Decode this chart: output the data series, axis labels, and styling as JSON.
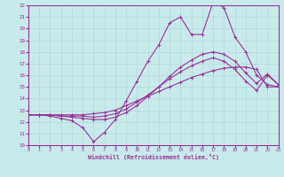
{
  "xlabel": "Windchill (Refroidissement éolien,°C)",
  "bg_color": "#c8eaea",
  "grid_color": "#b0d4d4",
  "line_color": "#993399",
  "xlim": [
    0,
    23
  ],
  "ylim": [
    10,
    22
  ],
  "xticks": [
    0,
    1,
    2,
    3,
    4,
    5,
    6,
    7,
    8,
    9,
    10,
    11,
    12,
    13,
    14,
    15,
    16,
    17,
    18,
    19,
    20,
    21,
    22,
    23
  ],
  "yticks": [
    10,
    11,
    12,
    13,
    14,
    15,
    16,
    17,
    18,
    19,
    20,
    21,
    22
  ],
  "x_all": [
    0,
    1,
    2,
    3,
    4,
    5,
    6,
    7,
    8,
    9,
    10,
    11,
    12,
    13,
    14,
    15,
    16,
    17,
    18,
    19,
    20,
    21,
    22,
    23
  ],
  "line1_y": [
    12.6,
    12.6,
    12.5,
    12.3,
    12.1,
    11.5,
    10.3,
    11.1,
    12.2,
    13.8,
    15.5,
    17.2,
    18.6,
    20.5,
    21.0,
    19.5,
    19.5,
    22.3,
    21.8,
    19.3,
    18.0,
    16.0,
    15.2,
    15.0
  ],
  "line2_y": [
    12.6,
    12.6,
    12.6,
    12.5,
    12.4,
    12.3,
    12.2,
    12.2,
    12.4,
    12.8,
    13.4,
    14.2,
    15.0,
    15.9,
    16.7,
    17.3,
    17.8,
    18.0,
    17.8,
    17.2,
    16.2,
    15.3,
    16.1,
    15.2
  ],
  "line3_y": [
    12.6,
    12.6,
    12.6,
    12.5,
    12.5,
    12.5,
    12.4,
    12.5,
    12.7,
    13.1,
    13.7,
    14.3,
    15.0,
    15.7,
    16.3,
    16.8,
    17.2,
    17.5,
    17.2,
    16.5,
    15.5,
    14.7,
    16.0,
    15.2
  ],
  "line4_y": [
    12.6,
    12.6,
    12.6,
    12.6,
    12.6,
    12.6,
    12.7,
    12.8,
    13.0,
    13.4,
    13.8,
    14.2,
    14.6,
    15.0,
    15.4,
    15.8,
    16.1,
    16.4,
    16.6,
    16.7,
    16.7,
    16.5,
    15.0,
    15.0
  ]
}
